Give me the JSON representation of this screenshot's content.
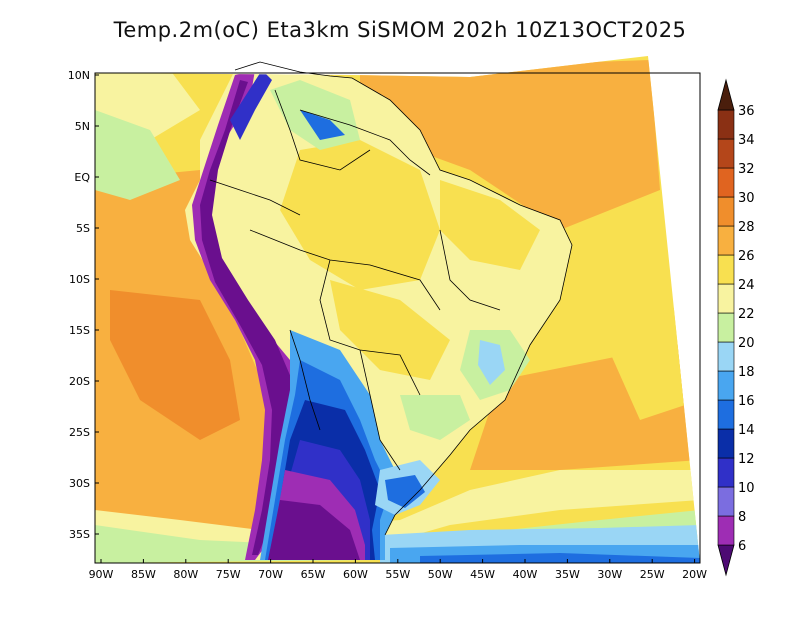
{
  "title": "Temp.2m(oC) Eta3km SiSMOM 202h 10Z13OCT2025",
  "map": {
    "lat_labels": [
      "10N",
      "5N",
      "EQ",
      "5S",
      "10S",
      "15S",
      "20S",
      "25S",
      "30S",
      "35S"
    ],
    "lon_labels": [
      "90W",
      "85W",
      "80W",
      "75W",
      "70W",
      "65W",
      "60W",
      "55W",
      "50W",
      "45W",
      "40W",
      "35W",
      "30W",
      "25W",
      "20W"
    ],
    "lat_range": [
      10,
      -37
    ],
    "lon_range": [
      -90,
      -20
    ]
  },
  "colorbar": {
    "labels": [
      "6",
      "8",
      "10",
      "12",
      "14",
      "16",
      "18",
      "20",
      "22",
      "24",
      "26",
      "28",
      "30",
      "32",
      "34",
      "36"
    ],
    "colors": [
      "#6a0f8e",
      "#9e2db4",
      "#7b6de0",
      "#3030c8",
      "#0a2ea8",
      "#1e6ee0",
      "#49a6f0",
      "#9ad6f5",
      "#c8f0a0",
      "#f8f3a0",
      "#f8e050",
      "#f8b040",
      "#f08e2c",
      "#e06420",
      "#b4461a",
      "#8a3014",
      "#5e2410"
    ],
    "under_color": "#4d0a73",
    "over_color": "#4a1e0c"
  }
}
